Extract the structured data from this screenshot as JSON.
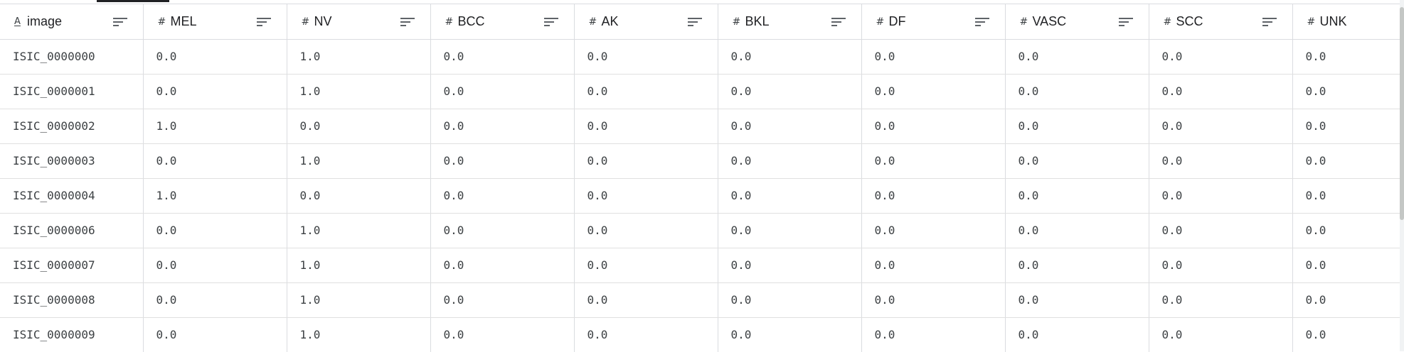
{
  "columns": [
    {
      "type": "text",
      "label": "image"
    },
    {
      "type": "number",
      "label": "MEL"
    },
    {
      "type": "number",
      "label": "NV"
    },
    {
      "type": "number",
      "label": "BCC"
    },
    {
      "type": "number",
      "label": "AK"
    },
    {
      "type": "number",
      "label": "BKL"
    },
    {
      "type": "number",
      "label": "DF"
    },
    {
      "type": "number",
      "label": "VASC"
    },
    {
      "type": "number",
      "label": "SCC"
    },
    {
      "type": "number",
      "label": "UNK"
    }
  ],
  "type_icons": {
    "text": "A",
    "number": "#"
  },
  "rows": [
    [
      "ISIC_0000000",
      "0.0",
      "1.0",
      "0.0",
      "0.0",
      "0.0",
      "0.0",
      "0.0",
      "0.0",
      "0.0"
    ],
    [
      "ISIC_0000001",
      "0.0",
      "1.0",
      "0.0",
      "0.0",
      "0.0",
      "0.0",
      "0.0",
      "0.0",
      "0.0"
    ],
    [
      "ISIC_0000002",
      "1.0",
      "0.0",
      "0.0",
      "0.0",
      "0.0",
      "0.0",
      "0.0",
      "0.0",
      "0.0"
    ],
    [
      "ISIC_0000003",
      "0.0",
      "1.0",
      "0.0",
      "0.0",
      "0.0",
      "0.0",
      "0.0",
      "0.0",
      "0.0"
    ],
    [
      "ISIC_0000004",
      "1.0",
      "0.0",
      "0.0",
      "0.0",
      "0.0",
      "0.0",
      "0.0",
      "0.0",
      "0.0"
    ],
    [
      "ISIC_0000006",
      "0.0",
      "1.0",
      "0.0",
      "0.0",
      "0.0",
      "0.0",
      "0.0",
      "0.0",
      "0.0"
    ],
    [
      "ISIC_0000007",
      "0.0",
      "1.0",
      "0.0",
      "0.0",
      "0.0",
      "0.0",
      "0.0",
      "0.0",
      "0.0"
    ],
    [
      "ISIC_0000008",
      "0.0",
      "1.0",
      "0.0",
      "0.0",
      "0.0",
      "0.0",
      "0.0",
      "0.0",
      "0.0"
    ],
    [
      "ISIC_0000009",
      "0.0",
      "1.0",
      "0.0",
      "0.0",
      "0.0",
      "0.0",
      "0.0",
      "0.0",
      "0.0"
    ]
  ],
  "icons": {
    "sort": "sort-lines-icon",
    "text_type": "text-type-icon",
    "number_type": "number-type-icon"
  },
  "colors": {
    "grid": "#dadce0",
    "text": "#3c4043",
    "header_text": "#202124"
  }
}
